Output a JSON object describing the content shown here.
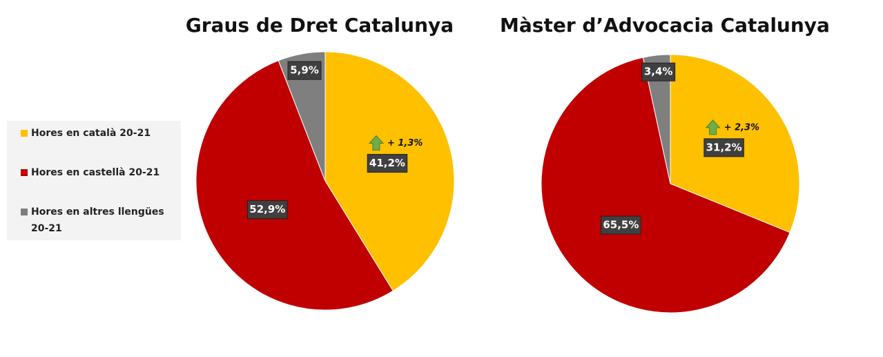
{
  "legend": {
    "labels": [
      "Hores en català 20-21",
      "Hores en castellà 20-21",
      "Hores en altres llengües 20-21"
    ],
    "colors": [
      "#ffc000",
      "#c00000",
      "#7f7f7f"
    ]
  },
  "chart_data": [
    {
      "type": "pie",
      "title": "Graus de Dret Catalunya",
      "values": [
        41.2,
        52.9,
        5.9
      ],
      "value_labels": [
        "41,2%",
        "52,9%",
        "5,9%"
      ],
      "annotation": "+ 1,3%"
    },
    {
      "type": "pie",
      "title": "Màster d’Advocacia Catalunya",
      "values": [
        31.2,
        65.5,
        3.4
      ],
      "value_labels": [
        "31,2%",
        "65,5%",
        "3,4%"
      ],
      "annotation": "+ 2,3%"
    }
  ]
}
